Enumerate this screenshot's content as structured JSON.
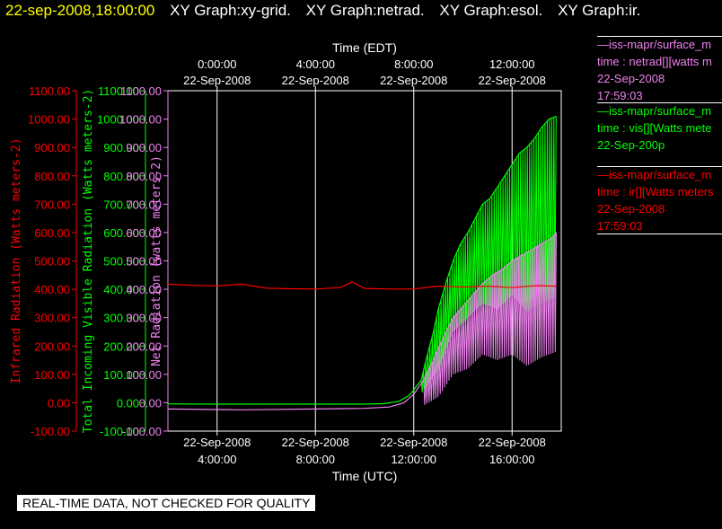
{
  "header": {
    "date_time": "22-sep-2008,18:00:00",
    "graphs": [
      "XY Graph:xy-grid.",
      "XY Graph:netrad.",
      "XY Graph:esol.",
      "XY Graph:ir."
    ],
    "date_color": "#ffff00",
    "text_color": "#ffffff"
  },
  "banner": "REAL-TIME DATA, NOT CHECKED FOR QUALITY",
  "legend": [
    {
      "source": "—iss-mapr/surface_m",
      "desc": "time : netrad[][watts m",
      "date": "22-Sep-2008",
      "time": "17:59:03",
      "color": "#ee82ee"
    },
    {
      "source": "—iss-mapr/surface_m",
      "desc": "time : vis[][Watts mete",
      "date": "22-Sep-200p",
      "time": "",
      "color": "#00ff00"
    },
    {
      "source": "—iss-mapr/surface_m",
      "desc": "time : ir[][Watts meters",
      "date": "22-Sep-2008",
      "time": "17:59:03",
      "color": "#ff0000"
    }
  ],
  "chart_data": {
    "type": "line",
    "x_top_title": "Time (EDT)",
    "x_bottom_title": "Time (UTC)",
    "top_ticks": [
      {
        "x": 0,
        "time": "0:00:00",
        "date": "22-Sep-2008"
      },
      {
        "x": 4,
        "time": "4:00:00",
        "date": "22-Sep-2008"
      },
      {
        "x": 8,
        "time": "8:00:00",
        "date": "22-Sep-2008"
      },
      {
        "x": 12,
        "time": "12:00:00",
        "date": "22-Sep-2008"
      }
    ],
    "bottom_ticks": [
      {
        "x": 0,
        "date": "22-Sep-2008",
        "time": "4:00:00"
      },
      {
        "x": 4,
        "date": "22-Sep-2008",
        "time": "8:00:00"
      },
      {
        "x": 8,
        "date": "22-Sep-2008",
        "time": "12:00:00"
      },
      {
        "x": 12,
        "date": "22-Sep-2008",
        "time": "16:00:00"
      }
    ],
    "xlim": [
      -2,
      14
    ],
    "ylim": [
      -100,
      1100
    ],
    "y_ticks": [
      "-100.00",
      "0.00",
      "100.00",
      "200.00",
      "300.00",
      "400.00",
      "500.00",
      "600.00",
      "700.00",
      "800.00",
      "900.00",
      "1000.00",
      "1100.00"
    ],
    "y_tick_values": [
      -100,
      0,
      100,
      200,
      300,
      400,
      500,
      600,
      700,
      800,
      900,
      1000,
      1100
    ],
    "axes": [
      {
        "label": "Infrared Radiation (Watts meters-2)",
        "color": "#ff0000"
      },
      {
        "label": "Total Incoming Visible Radiation (Watts meters-2)",
        "color": "#00ff00"
      },
      {
        "label": "Net Radiation (watts meters-2)",
        "color": "#ee82ee"
      }
    ],
    "grid_x": [
      0,
      4,
      8,
      12
    ],
    "series": [
      {
        "color": "#00ff00",
        "points": [
          [
            -2,
            -4
          ],
          [
            0,
            -5
          ],
          [
            2,
            -5
          ],
          [
            4,
            -5
          ],
          [
            6,
            -5
          ],
          [
            6.8,
            -3
          ],
          [
            7.4,
            5
          ],
          [
            7.8,
            25
          ],
          [
            8.0,
            45
          ],
          [
            8.3,
            80
          ],
          [
            8.5,
            150
          ],
          [
            8.8,
            250
          ],
          [
            9.0,
            330
          ],
          [
            9.3,
            420
          ],
          [
            9.6,
            500
          ],
          [
            9.9,
            560
          ],
          [
            10.2,
            600
          ],
          [
            10.5,
            650
          ],
          [
            10.8,
            700
          ],
          [
            11.1,
            720
          ],
          [
            11.4,
            760
          ],
          [
            11.7,
            800
          ],
          [
            12.0,
            840
          ],
          [
            12.3,
            880
          ],
          [
            12.6,
            900
          ],
          [
            12.9,
            930
          ],
          [
            13.2,
            970
          ],
          [
            13.5,
            1000
          ],
          [
            13.8,
            1010
          ]
        ],
        "low": [
          [
            8.3,
            30
          ],
          [
            9.0,
            120
          ],
          [
            9.6,
            250
          ],
          [
            10.2,
            300
          ],
          [
            10.8,
            350
          ],
          [
            11.4,
            330
          ],
          [
            12.0,
            380
          ],
          [
            12.6,
            320
          ],
          [
            13.2,
            350
          ],
          [
            13.8,
            370
          ]
        ]
      },
      {
        "color": "#ee82ee",
        "points": [
          [
            -2,
            -22
          ],
          [
            0,
            -24
          ],
          [
            1,
            -25
          ],
          [
            4,
            -22
          ],
          [
            6,
            -20
          ],
          [
            7.0,
            -15
          ],
          [
            7.6,
            0
          ],
          [
            8.0,
            30
          ],
          [
            8.4,
            80
          ],
          [
            8.8,
            150
          ],
          [
            9.2,
            230
          ],
          [
            9.6,
            300
          ],
          [
            10.0,
            340
          ],
          [
            10.4,
            380
          ],
          [
            10.8,
            420
          ],
          [
            11.2,
            450
          ],
          [
            11.6,
            470
          ],
          [
            12.0,
            500
          ],
          [
            12.4,
            520
          ],
          [
            12.8,
            540
          ],
          [
            13.2,
            560
          ],
          [
            13.6,
            580
          ],
          [
            13.8,
            600
          ]
        ],
        "low": [
          [
            8.4,
            -10
          ],
          [
            9.0,
            20
          ],
          [
            9.6,
            100
          ],
          [
            10.2,
            120
          ],
          [
            10.8,
            170
          ],
          [
            11.4,
            150
          ],
          [
            12.0,
            170
          ],
          [
            12.6,
            130
          ],
          [
            13.2,
            160
          ],
          [
            13.8,
            180
          ]
        ]
      },
      {
        "color": "#ff0000",
        "points": [
          [
            -2,
            418
          ],
          [
            -1,
            414
          ],
          [
            0,
            412
          ],
          [
            1,
            418
          ],
          [
            2,
            404
          ],
          [
            3,
            402
          ],
          [
            4,
            401
          ],
          [
            5,
            406
          ],
          [
            5.5,
            426
          ],
          [
            6,
            403
          ],
          [
            7,
            401
          ],
          [
            8,
            401
          ],
          [
            9,
            411
          ],
          [
            10,
            408
          ],
          [
            11,
            411
          ],
          [
            12,
            406
          ],
          [
            13,
            413
          ],
          [
            13.8,
            411
          ]
        ]
      }
    ]
  }
}
